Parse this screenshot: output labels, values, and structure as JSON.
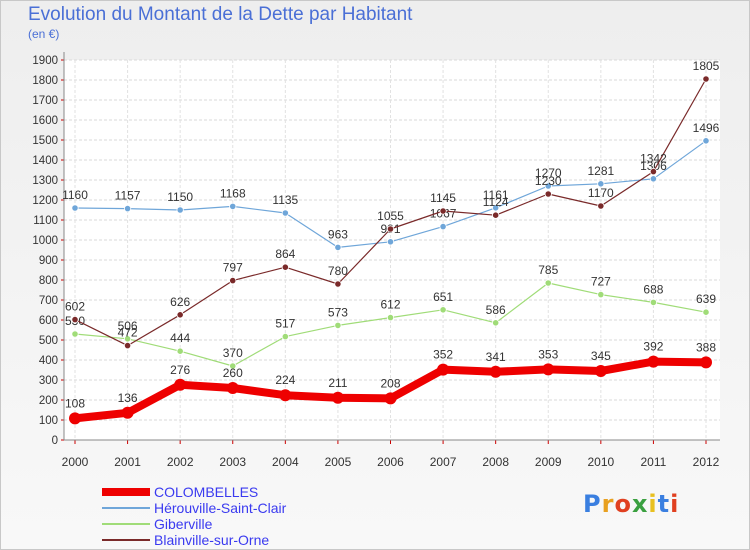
{
  "header": {
    "title": "Evolution du Montant de la Dette par Habitant",
    "subtitle": "(en €)"
  },
  "logo": {
    "text": "Proxiti",
    "letter_colors": [
      "#3a7fe0",
      "#e8a020",
      "#e04020",
      "#3aa040",
      "#e8c020",
      "#3a7fe0",
      "#e04020"
    ]
  },
  "chart_data": {
    "type": "line",
    "x": [
      "2000",
      "2001",
      "2002",
      "2003",
      "2004",
      "2005",
      "2006",
      "2007",
      "2008",
      "2009",
      "2010",
      "2011",
      "2012"
    ],
    "ylim": [
      0,
      1900
    ],
    "yticks": [
      0,
      100,
      200,
      300,
      400,
      500,
      600,
      700,
      800,
      900,
      1000,
      1100,
      1200,
      1300,
      1400,
      1500,
      1600,
      1700,
      1800,
      1900
    ],
    "grid": true,
    "legend_position": "bottom-left",
    "series": [
      {
        "name": "COLOMBELLES",
        "color": "#ee0000",
        "width": 8,
        "values": [
          108,
          136,
          276,
          260,
          224,
          211,
          208,
          352,
          341,
          353,
          345,
          392,
          388
        ]
      },
      {
        "name": "Hérouville-Saint-Clair",
        "color": "#6fa6d9",
        "width": 1.2,
        "values": [
          1160,
          1157,
          1150,
          1168,
          1135,
          963,
          991,
          1067,
          1161,
          1270,
          1281,
          1306,
          1496
        ]
      },
      {
        "name": "Giberville",
        "color": "#a0dc78",
        "width": 1.2,
        "values": [
          530,
          506,
          444,
          370,
          517,
          573,
          612,
          651,
          586,
          785,
          727,
          688,
          639
        ]
      },
      {
        "name": "Blainville-sur-Orne",
        "color": "#7a2a2a",
        "width": 1.2,
        "values": [
          602,
          472,
          626,
          797,
          864,
          780,
          1055,
          1145,
          1124,
          1230,
          1170,
          1342,
          1805
        ]
      }
    ]
  }
}
